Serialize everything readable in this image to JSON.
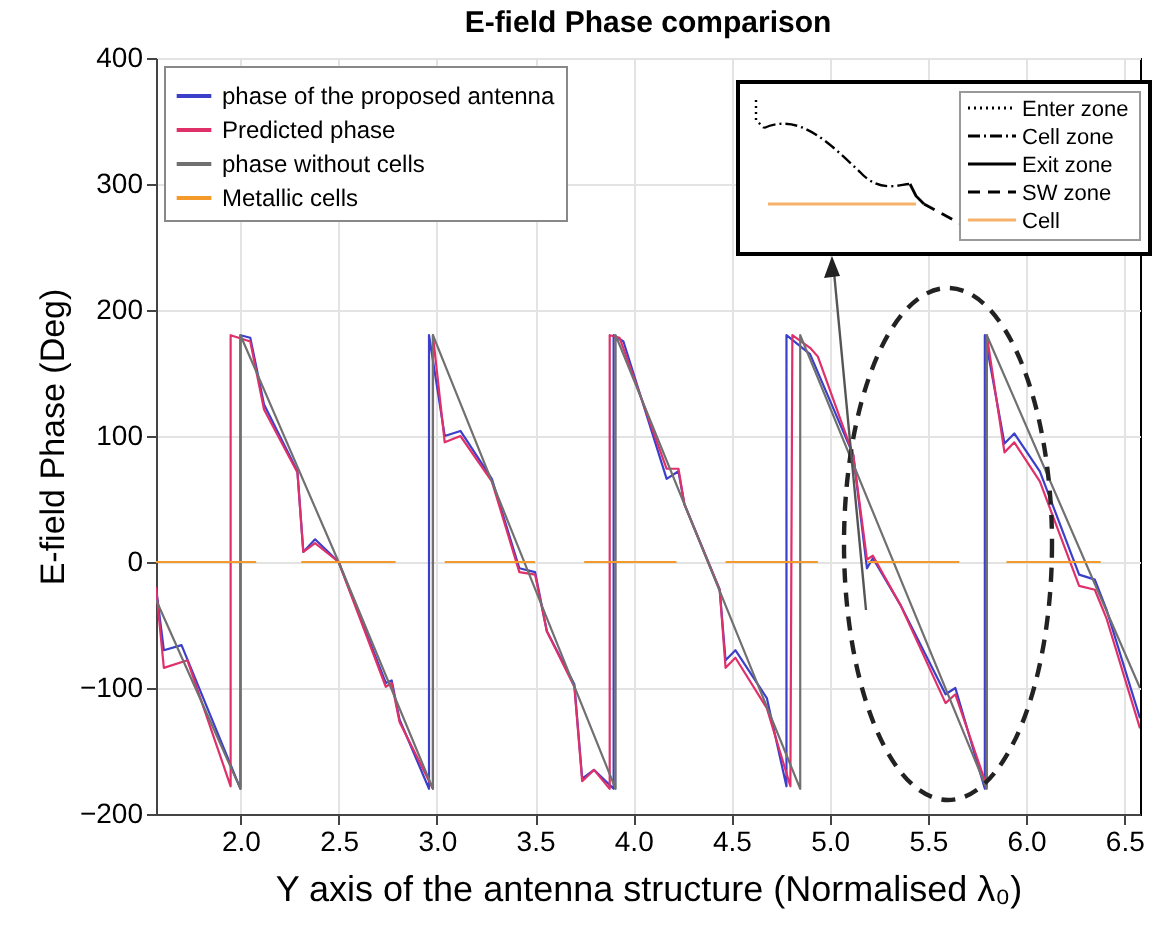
{
  "chart_data": [
    {
      "type": "line",
      "title": "E-field Phase comparison",
      "xlabel": "Y axis of the antenna structure (Normalised λ₀)",
      "ylabel": "E-field Phase (Deg)",
      "xlim": [
        1.57,
        6.58
      ],
      "xticks": [
        {
          "value": 2,
          "label": "2.0"
        },
        2.5,
        {
          "value": 3,
          "label": "3.0"
        },
        3.5,
        {
          "value": 4,
          "label": "4.0"
        },
        4.5,
        {
          "value": 5,
          "label": "5.0"
        },
        5.5,
        {
          "value": 6,
          "label": "6.0"
        },
        6.5
      ],
      "ylim": [
        -200,
        400
      ],
      "yticks": [
        -200,
        -100,
        0,
        100,
        200,
        300,
        400
      ],
      "grid": true,
      "legend": "top left",
      "series": [
        {
          "name": "phase of the proposed antenna",
          "color": "#3b3fc9",
          "x": [
            1.57,
            1.61,
            1.7,
            2.0,
            2.0,
            2.05,
            2.12,
            2.29,
            2.32,
            2.38,
            2.5,
            2.74,
            2.77,
            2.81,
            2.96,
            2.96,
            3.04,
            3.12,
            3.28,
            3.42,
            3.5,
            3.56,
            3.7,
            3.74,
            3.8,
            3.9,
            3.9,
            3.95,
            4.17,
            4.23,
            4.26,
            4.44,
            4.47,
            4.52,
            4.68,
            4.78,
            4.78,
            4.9,
            5.12,
            5.19,
            5.22,
            5.36,
            5.59,
            5.64,
            5.79,
            5.79,
            5.89,
            5.94,
            6.07,
            6.27,
            6.35,
            6.41,
            6.58
          ],
          "values": [
            -20,
            -70,
            -66,
            -180,
            180,
            178,
            125,
            72,
            8,
            18,
            0,
            -96,
            -94,
            -125,
            -180,
            180,
            100,
            104,
            66,
            -5,
            -8,
            -55,
            -97,
            -172,
            -165,
            -180,
            180,
            175,
            66,
            72,
            46,
            -22,
            -78,
            -70,
            -108,
            -178,
            180,
            165,
            85,
            -5,
            3,
            -34,
            -105,
            -100,
            -180,
            180,
            94,
            102,
            72,
            -10,
            -14,
            -38,
            -124
          ]
        },
        {
          "name": "Predicted phase",
          "color": "#e0306a",
          "x": [
            1.57,
            1.61,
            1.73,
            1.95,
            1.95,
            2.05,
            2.12,
            2.29,
            2.32,
            2.38,
            2.5,
            2.74,
            2.77,
            2.81,
            2.98,
            2.98,
            3.04,
            3.12,
            3.28,
            3.42,
            3.5,
            3.56,
            3.7,
            3.74,
            3.8,
            3.88,
            3.88,
            3.93,
            4.17,
            4.23,
            4.26,
            4.44,
            4.47,
            4.52,
            4.68,
            4.8,
            4.81,
            4.9,
            4.94,
            5.12,
            5.19,
            5.22,
            5.36,
            5.59,
            5.64,
            5.8,
            5.8,
            5.89,
            5.94,
            6.07,
            6.27,
            6.35,
            6.41,
            6.58
          ],
          "values": [
            -20,
            -84,
            -78,
            -178,
            180,
            175,
            121,
            71,
            8,
            15,
            0,
            -99,
            -96,
            -127,
            -180,
            180,
            95,
            100,
            64,
            -8,
            -10,
            -55,
            -99,
            -174,
            -165,
            -180,
            180,
            178,
            74,
            74,
            46,
            -22,
            -84,
            -76,
            -116,
            -178,
            180,
            170,
            163,
            85,
            2,
            5,
            -34,
            -112,
            -105,
            -178,
            180,
            87,
            95,
            64,
            -19,
            -22,
            -45,
            -132
          ]
        },
        {
          "name": "phase without cells",
          "color": "#707070",
          "x": [
            1.57,
            2.0,
            2.0,
            2.5,
            2.98,
            2.98,
            3.91,
            3.91,
            4.85,
            4.85,
            5.8,
            5.8,
            6.58
          ],
          "values": [
            -30,
            -180,
            180,
            0,
            -180,
            180,
            -180,
            180,
            -180,
            180,
            -180,
            180,
            -100
          ]
        },
        {
          "name": "Metallic cells",
          "color": "#f39a2b",
          "x": [
            1.57,
            2.08,
            2.2,
            2.31,
            2.79,
            2.9,
            3.04,
            3.5,
            3.6,
            3.75,
            4.22,
            4.35,
            4.47,
            4.94,
            5.05,
            5.19,
            5.66,
            5.78,
            5.9,
            6.38
          ],
          "values": [
            0,
            0,
            null,
            0,
            0,
            null,
            0,
            0,
            null,
            0,
            0,
            null,
            0,
            0,
            null,
            0,
            0,
            null,
            0,
            0
          ]
        }
      ]
    },
    {
      "type": "other",
      "annotations": [
        "Enter zone",
        "Cell zone",
        "Exit zone",
        "SW zone",
        "Cell"
      ]
    }
  ]
}
